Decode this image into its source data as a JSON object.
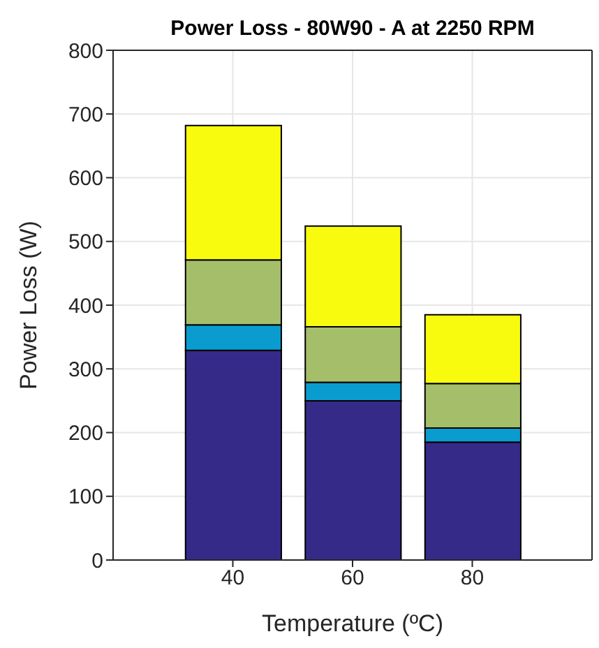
{
  "chart_data": {
    "type": "bar",
    "title": "Power Loss - 80W90 - A at 2250 RPM",
    "xlabel": "Temperature (ºC)",
    "ylabel": "Power Loss (W)",
    "x": [
      40,
      60,
      80
    ],
    "xlim": [
      20,
      100
    ],
    "xticks": [
      40,
      60,
      80
    ],
    "ylim": [
      0,
      800
    ],
    "yticks": [
      0,
      100,
      200,
      300,
      400,
      500,
      600,
      700,
      800
    ],
    "stacked": true,
    "grid": true,
    "series": [
      {
        "color": "#352a87",
        "values": [
          329,
          250,
          185
        ]
      },
      {
        "color": "#0a9ccf",
        "values": [
          40,
          29,
          22
        ]
      },
      {
        "color": "#a5be6a",
        "values": [
          102,
          87,
          70
        ]
      },
      {
        "color": "#f9fb0e",
        "values": [
          211,
          158,
          108
        ]
      }
    ]
  }
}
